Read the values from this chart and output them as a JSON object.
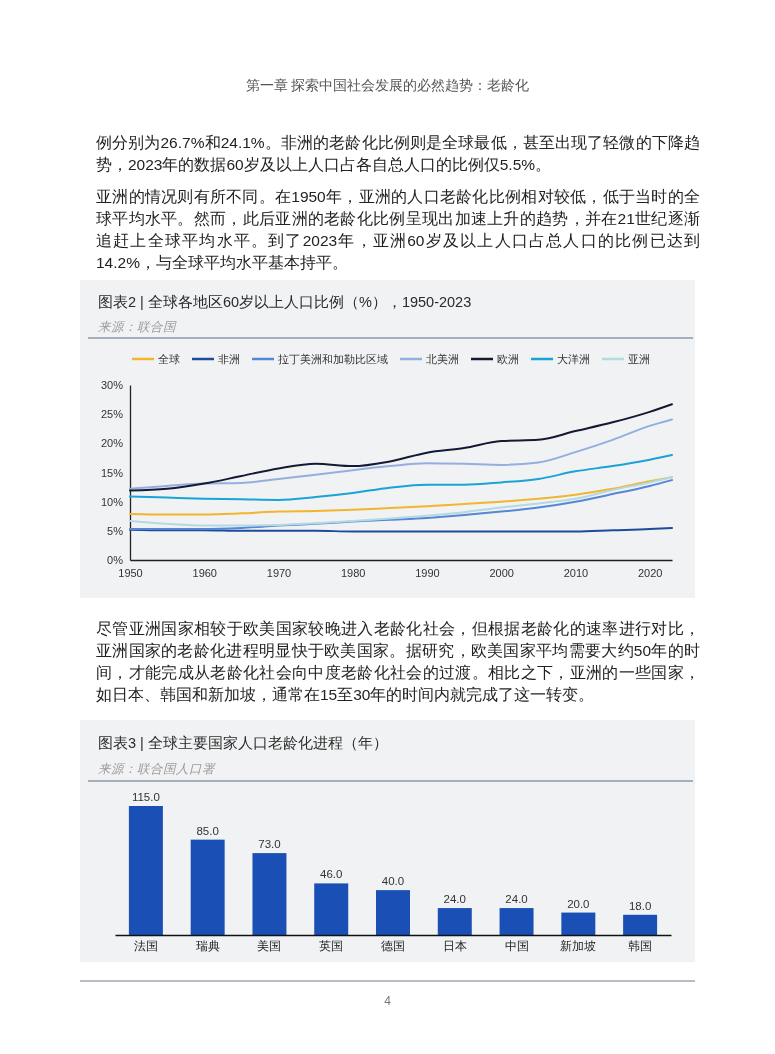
{
  "chart_data": [
    {
      "type": "line",
      "title": "图表2 | 全球各地区60岁以上人口比例（%），1950-2023",
      "annotations": [
        "第一章 探索中国社会发展的必然趋势：老龄化",
        "例分别为26.7%和24.1%。非洲的老龄化比例则是全球最低，甚至出现了轻微的下降趋势，2023年的数据60岁及以上人口占各自总人口的比例仅5.5%。",
        "亚洲的情况则有所不同。在1950年，亚洲的人口老龄化比例相对较低，低于当时的全球平均水平。然而，此后亚洲的老龄化比例呈现出加速上升的趋势，并在21世纪逐渐追赶上全球平均水平。到了2023年，亚洲60岁及以上人口占总人口的比例已达到14.2%，与全球平均水平基本持平。",
        "来源：联合国"
      ],
      "x": [
        1950,
        1955,
        1960,
        1965,
        1970,
        1975,
        1980,
        1985,
        1990,
        1995,
        2000,
        2005,
        2010,
        2015,
        2020,
        2023
      ],
      "xlim": [
        1950,
        2023
      ],
      "xticks": [
        1950,
        1960,
        1970,
        1980,
        1990,
        2000,
        2010,
        2020
      ],
      "ylim": [
        0,
        30
      ],
      "yticks": [
        {
          "value": 0,
          "label": "0%"
        },
        {
          "value": 5,
          "label": "5%"
        },
        {
          "value": 10,
          "label": "10%"
        },
        {
          "value": 15,
          "label": "15%"
        },
        {
          "value": 20,
          "label": "20%"
        },
        {
          "value": 25,
          "label": "25%"
        },
        {
          "value": 30,
          "label": "30%"
        }
      ],
      "legend": "top",
      "series": [
        {
          "name": "全球",
          "color": "#f2b530",
          "values": [
            7.9,
            7.8,
            7.8,
            8.0,
            8.3,
            8.4,
            8.6,
            8.9,
            9.2,
            9.6,
            10.0,
            10.5,
            11.2,
            12.2,
            13.5,
            14.2
          ]
        },
        {
          "name": "非洲",
          "color": "#1d4c9c",
          "values": [
            5.2,
            5.1,
            5.1,
            5.0,
            5.0,
            5.0,
            4.9,
            4.9,
            4.9,
            4.9,
            4.9,
            4.9,
            4.9,
            5.1,
            5.3,
            5.5
          ]
        },
        {
          "name": "拉丁美洲和加勒比区域",
          "color": "#5686d6",
          "values": [
            5.3,
            5.3,
            5.3,
            5.5,
            5.9,
            6.2,
            6.6,
            6.9,
            7.2,
            7.7,
            8.3,
            9.0,
            10.0,
            11.3,
            12.7,
            13.7
          ]
        },
        {
          "name": "北美洲",
          "color": "#94aee0",
          "values": [
            12.2,
            12.7,
            13.1,
            13.2,
            13.9,
            14.6,
            15.4,
            16.1,
            16.6,
            16.5,
            16.3,
            16.7,
            18.5,
            20.6,
            23.0,
            24.1
          ]
        },
        {
          "name": "欧洲",
          "color": "#141a33",
          "values": [
            11.9,
            12.2,
            13.1,
            14.4,
            15.7,
            16.5,
            16.1,
            16.9,
            18.4,
            19.2,
            20.4,
            20.6,
            22.1,
            23.6,
            25.4,
            26.7
          ]
        },
        {
          "name": "大洋洲",
          "color": "#1aa3d6",
          "values": [
            10.9,
            10.7,
            10.5,
            10.4,
            10.3,
            10.8,
            11.5,
            12.4,
            12.9,
            12.9,
            13.3,
            13.9,
            15.2,
            16.1,
            17.2,
            18.0
          ]
        },
        {
          "name": "亚洲",
          "color": "#b3d9e3",
          "values": [
            6.7,
            6.2,
            5.9,
            5.9,
            6.0,
            6.3,
            6.7,
            7.1,
            7.6,
            8.2,
            9.0,
            9.7,
            10.5,
            12.0,
            13.3,
            14.2
          ]
        }
      ]
    },
    {
      "type": "bar",
      "title": "图表3 | 全球主要国家人口老龄化进程（年）",
      "annotations": [
        "尽管亚洲国家相较于欧美国家较晚进入老龄化社会，但根据老龄化的速率进行对比，亚洲国家的老龄化进程明显快于欧美国家。据研究，欧美国家平均需要大约50年的时间，才能完成从老龄化社会向中度老龄化社会的过渡。相比之下，亚洲的一些国家，如日本、韩国和新加坡，通常在15至30年的时间内就完成了这一转变。",
        "来源：联合国人口署",
        "4"
      ],
      "categories": [
        "法国",
        "瑞典",
        "美国",
        "英国",
        "德国",
        "日本",
        "中国",
        "新加坡",
        "韩国"
      ],
      "values": [
        115,
        85,
        73,
        46,
        40,
        24,
        24,
        20,
        18
      ],
      "value_labels": [
        "115.0",
        "85.0",
        "73.0",
        "46.0",
        "40.0",
        "24.0",
        "24.0",
        "20.0",
        "18.0"
      ],
      "color": "#1a4fb5",
      "tick_labels": "x"
    }
  ]
}
